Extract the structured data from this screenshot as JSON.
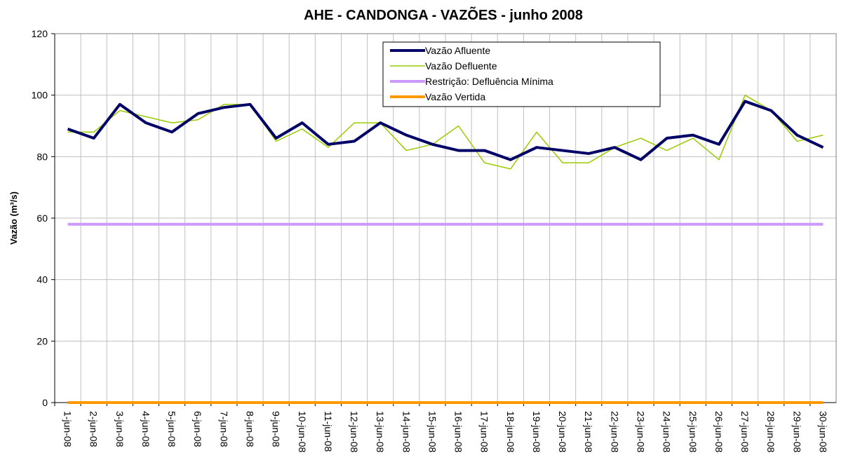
{
  "chart_data": {
    "type": "line",
    "title": "AHE - CANDONGA - VAZÕES - junho 2008",
    "y_label": "Vazão (m³/s)",
    "categories": [
      "1-jun-08",
      "2-jun-08",
      "3-jun-08",
      "4-jun-08",
      "5-jun-08",
      "6-jun-08",
      "7-jun-08",
      "8-jun-08",
      "9-jun-08",
      "10-jun-08",
      "11-jun-08",
      "12-jun-08",
      "13-jun-08",
      "14-jun-08",
      "15-jun-08",
      "16-jun-08",
      "17-jun-08",
      "18-jun-08",
      "19-jun-08",
      "20-jun-08",
      "21-jun-08",
      "22-jun-08",
      "23-jun-08",
      "24-jun-08",
      "25-jun-08",
      "26-jun-08",
      "27-jun-08",
      "28-jun-08",
      "29-jun-08",
      "30-jun-08"
    ],
    "series": [
      {
        "name": "Vazão Afluente",
        "color": "#000066",
        "width": 4,
        "values": [
          89,
          86,
          97,
          91,
          88,
          94,
          96,
          97,
          86,
          91,
          84,
          85,
          91,
          87,
          84,
          82,
          82,
          79,
          83,
          82,
          81,
          83,
          79,
          86,
          87,
          84,
          98,
          95,
          87,
          83
        ]
      },
      {
        "name": "Vazão Defluente",
        "color": "#99cc00",
        "width": 1.5,
        "values": [
          88,
          88,
          95,
          93,
          91,
          92,
          97,
          97,
          85,
          89,
          83,
          91,
          91,
          82,
          84,
          90,
          78,
          76,
          88,
          78,
          78,
          83,
          86,
          82,
          86,
          79,
          100,
          95,
          85,
          87
        ]
      },
      {
        "name": "Restrição: Defluência Mínima",
        "color": "#cc99ff",
        "width": 4,
        "values": [
          58,
          58,
          58,
          58,
          58,
          58,
          58,
          58,
          58,
          58,
          58,
          58,
          58,
          58,
          58,
          58,
          58,
          58,
          58,
          58,
          58,
          58,
          58,
          58,
          58,
          58,
          58,
          58,
          58,
          58
        ]
      },
      {
        "name": "Vazão Vertida",
        "color": "#ff9900",
        "width": 4,
        "values": [
          0,
          0,
          0,
          0,
          0,
          0,
          0,
          0,
          0,
          0,
          0,
          0,
          0,
          0,
          0,
          0,
          0,
          0,
          0,
          0,
          0,
          0,
          0,
          0,
          0,
          0,
          0,
          0,
          0,
          0
        ]
      }
    ],
    "ylim": [
      0,
      120
    ],
    "yticks": [
      0,
      20,
      40,
      60,
      80,
      100,
      120
    ],
    "grid": true
  }
}
